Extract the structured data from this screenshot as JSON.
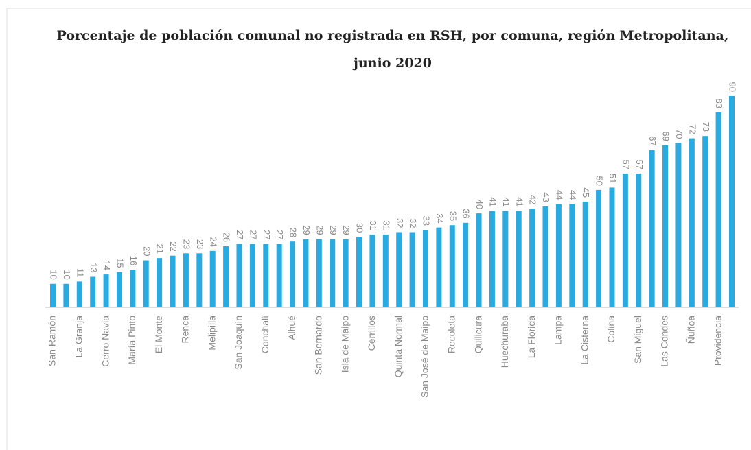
{
  "chart_data": {
    "type": "bar",
    "title": "Porcentaje de población comunal no registrada en RSH, por comuna, región Metropolitana, junio 2020",
    "categories": [
      "San Ramón",
      null,
      "La Granja",
      null,
      "Cerro Navia",
      null,
      "María Pinto",
      null,
      "El Monte",
      null,
      "Renca",
      null,
      "Melipilla",
      null,
      "San Joaquín",
      null,
      "Conchalí",
      null,
      "Alhué",
      null,
      "San Bernardo",
      null,
      "Isla de Maipo",
      null,
      "Cerrillos",
      null,
      "Quinta Normal",
      null,
      "San José de Maipo",
      null,
      "Recoleta",
      null,
      "Quilicura",
      null,
      "Huechuraba",
      null,
      "La Florida",
      null,
      "Lampa",
      null,
      "La Cisterna",
      null,
      "Colina",
      null,
      "San Miguel",
      null,
      "Las Condes",
      null,
      "Ñuñoa",
      null,
      "Providencia",
      null
    ],
    "values": [
      10,
      10,
      11,
      13,
      14,
      15,
      16,
      20,
      21,
      22,
      23,
      23,
      24,
      26,
      27,
      27,
      27,
      27,
      28,
      29,
      29,
      29,
      29,
      30,
      31,
      31,
      32,
      32,
      33,
      34,
      35,
      36,
      40,
      41,
      41,
      41,
      42,
      43,
      44,
      44,
      45,
      50,
      51,
      57,
      57,
      67,
      69,
      70,
      72,
      73,
      83,
      90
    ],
    "color": "#29abe2"
  }
}
